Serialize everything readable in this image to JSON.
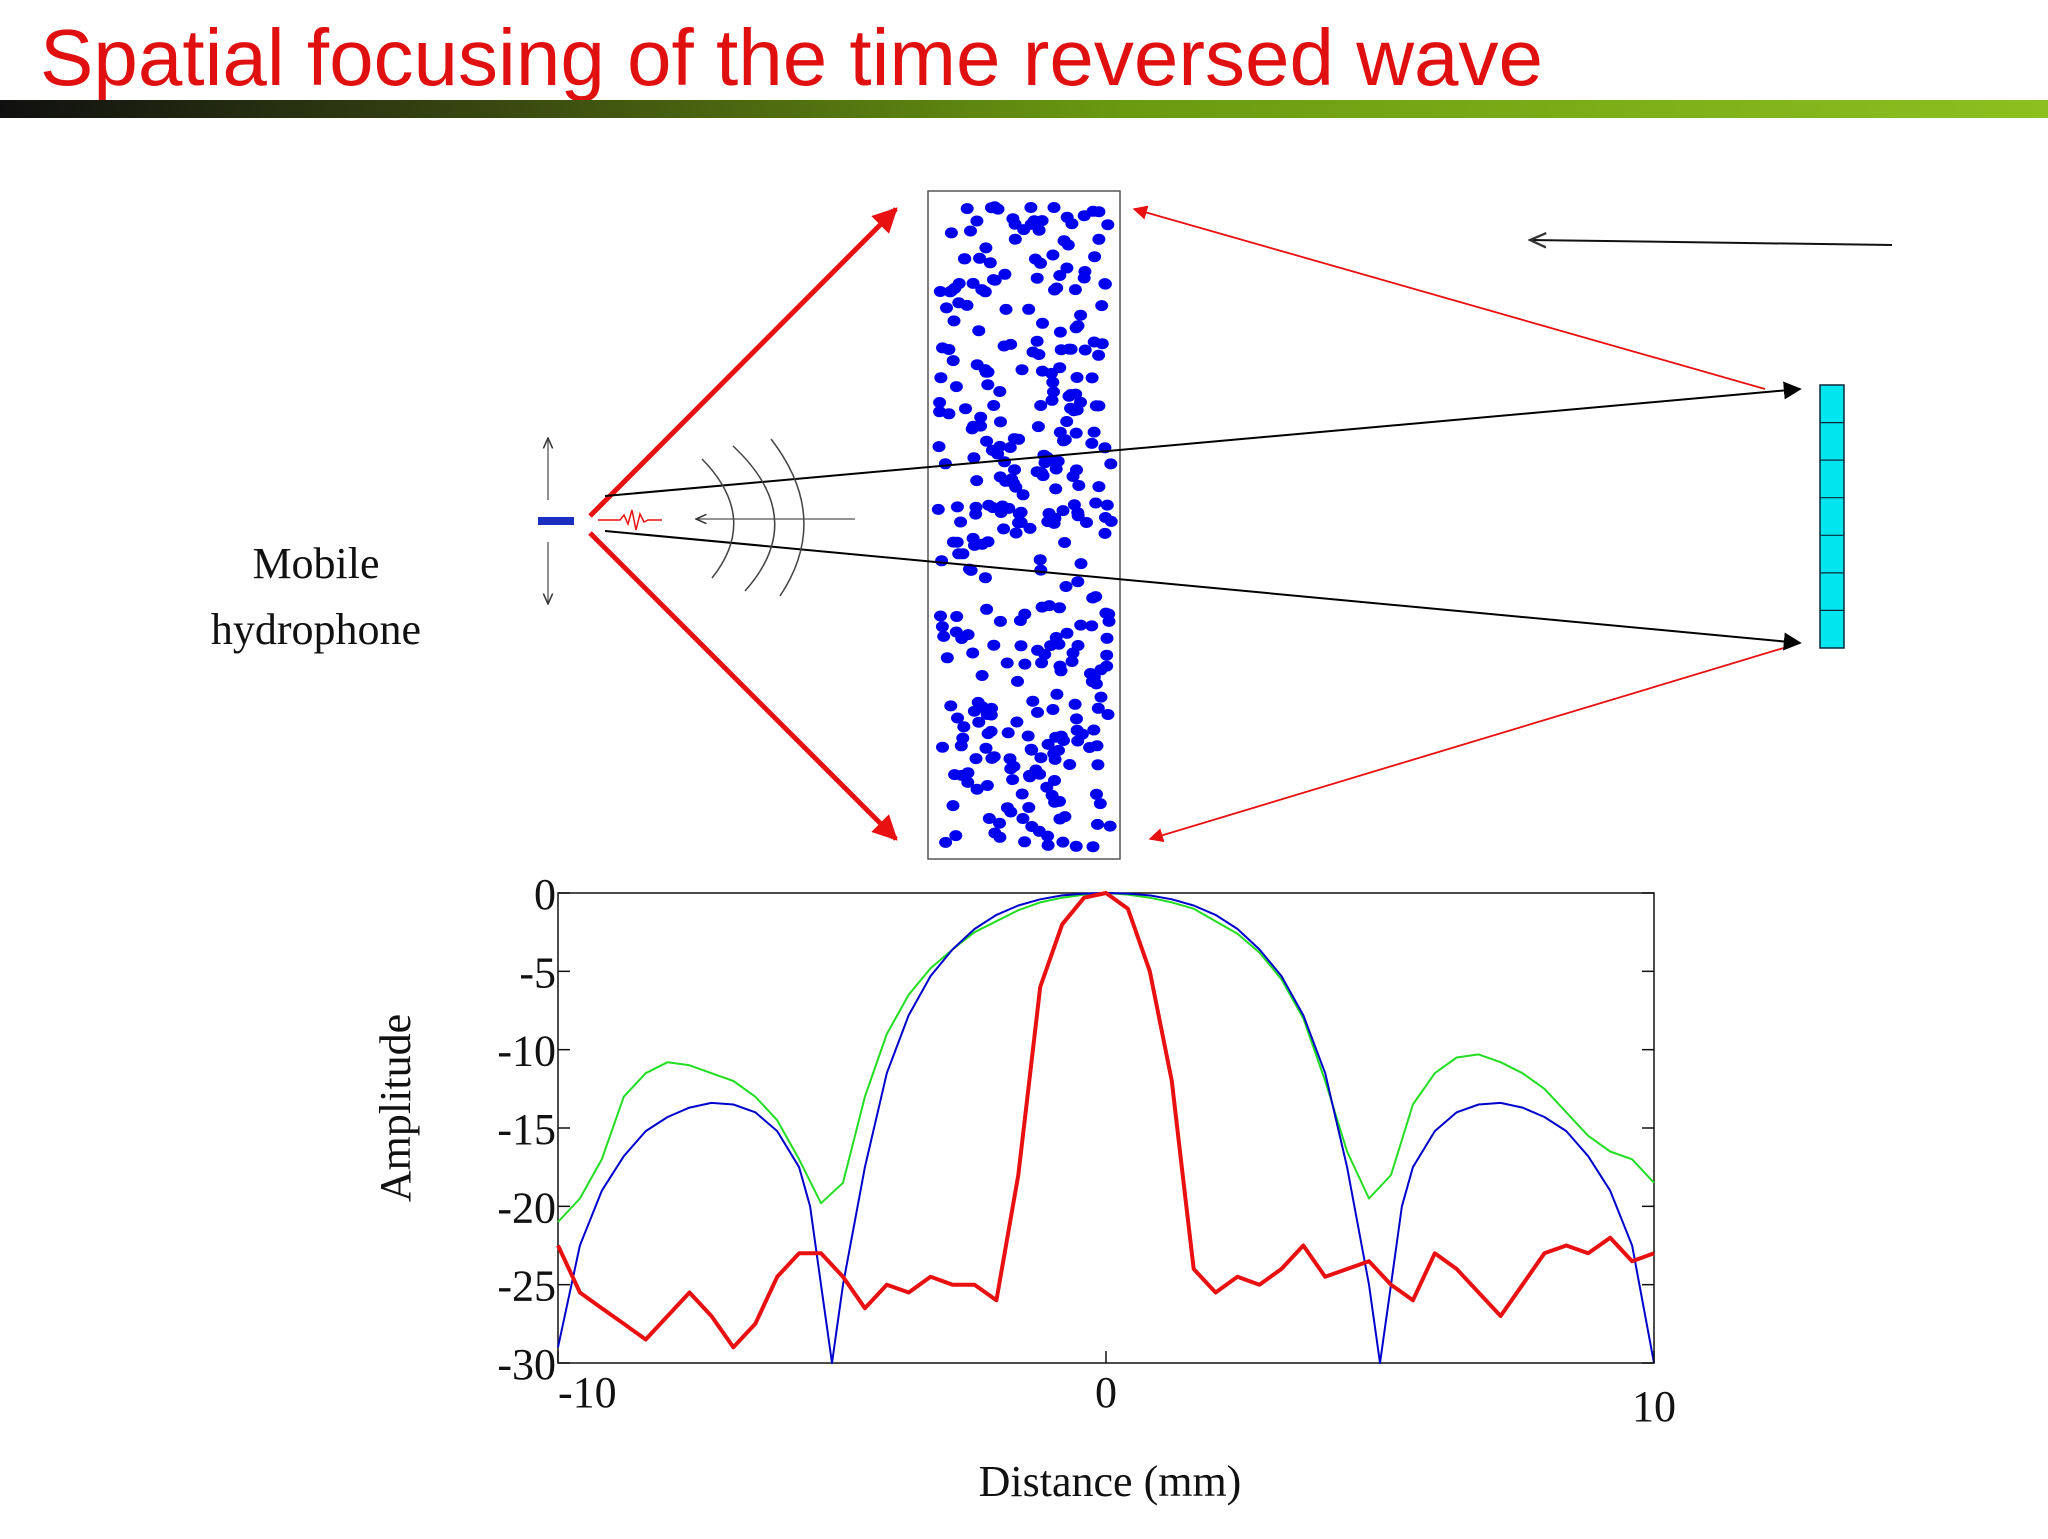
{
  "title": "Spatial focusing of the time reversed wave",
  "colors": {
    "title": "#e01010",
    "scatterers": "#0000ee",
    "array": "#00e5ee",
    "red_arrow": "#e81010",
    "green_curve": "#22dd22",
    "blue_curve": "#0000cc",
    "red_curve": "#e81010"
  },
  "diagram": {
    "hydrophone_label_line1": "Mobile",
    "hydrophone_label_line2": "hydrophone",
    "icons": [
      "hydrophone-marker",
      "scattering-slab",
      "transducer-array",
      "direction-arrow"
    ],
    "array_elements": 7
  },
  "chart_data": {
    "type": "line",
    "xlabel": "Distance (mm)",
    "ylabel": "Amplitude",
    "xlim": [
      -10,
      10
    ],
    "ylim": [
      -30,
      0
    ],
    "xticks": [
      -10,
      0,
      10
    ],
    "yticks": [
      0,
      -5,
      -10,
      -15,
      -20,
      -25,
      -30
    ],
    "x_tick_labels": [
      "-10",
      "0",
      "10"
    ],
    "y_tick_labels": [
      "0",
      "-5",
      "-10",
      "-15",
      "-20",
      "-25",
      "-30"
    ],
    "grid": false,
    "series": [
      {
        "color": "#22dd22",
        "x": [
          -10,
          -9.6,
          -9.2,
          -8.8,
          -8.4,
          -8.0,
          -7.6,
          -7.2,
          -6.8,
          -6.4,
          -6.0,
          -5.6,
          -5.2,
          -4.8,
          -4.4,
          -4.0,
          -3.6,
          -3.2,
          -2.8,
          -2.4,
          -2.0,
          -1.6,
          -1.2,
          -0.8,
          -0.4,
          0,
          0.4,
          0.8,
          1.2,
          1.6,
          2.0,
          2.4,
          2.8,
          3.2,
          3.6,
          4.0,
          4.4,
          4.8,
          5.2,
          5.6,
          6.0,
          6.4,
          6.8,
          7.2,
          7.6,
          8.0,
          8.4,
          8.8,
          9.2,
          9.6,
          10
        ],
        "y": [
          -21.0,
          -19.5,
          -17.0,
          -13.0,
          -11.5,
          -10.8,
          -11.0,
          -11.5,
          -12.0,
          -13.0,
          -14.5,
          -17.0,
          -19.8,
          -18.5,
          -13.0,
          -9.0,
          -6.5,
          -4.8,
          -3.6,
          -2.5,
          -1.8,
          -1.1,
          -0.6,
          -0.3,
          -0.1,
          0,
          -0.1,
          -0.3,
          -0.6,
          -1.0,
          -1.8,
          -2.6,
          -3.8,
          -5.5,
          -8.0,
          -12.0,
          -16.5,
          -19.5,
          -18.0,
          -13.5,
          -11.5,
          -10.5,
          -10.3,
          -10.8,
          -11.5,
          -12.5,
          -14.0,
          -15.5,
          -16.5,
          -17.0,
          -18.5
        ]
      },
      {
        "color": "#0000cc",
        "x": [
          -10,
          -9.6,
          -9.2,
          -8.8,
          -8.4,
          -8.0,
          -7.6,
          -7.2,
          -6.8,
          -6.4,
          -6.0,
          -5.6,
          -5.4,
          -5.2,
          -5.0,
          -4.8,
          -4.4,
          -4.0,
          -3.6,
          -3.2,
          -2.8,
          -2.4,
          -2.0,
          -1.6,
          -1.2,
          -0.8,
          -0.4,
          0,
          0.4,
          0.8,
          1.2,
          1.6,
          2.0,
          2.4,
          2.8,
          3.2,
          3.6,
          4.0,
          4.4,
          4.8,
          5.0,
          5.2,
          5.4,
          5.6,
          6.0,
          6.4,
          6.8,
          7.2,
          7.6,
          8.0,
          8.4,
          8.8,
          9.2,
          9.6,
          10
        ],
        "y": [
          -29.0,
          -22.5,
          -19.0,
          -16.8,
          -15.2,
          -14.3,
          -13.7,
          -13.4,
          -13.5,
          -14.0,
          -15.2,
          -17.5,
          -20.0,
          -25.0,
          -30.0,
          -25.0,
          -17.5,
          -11.5,
          -7.8,
          -5.3,
          -3.6,
          -2.3,
          -1.4,
          -0.8,
          -0.4,
          -0.15,
          -0.04,
          0,
          -0.04,
          -0.15,
          -0.4,
          -0.8,
          -1.4,
          -2.3,
          -3.6,
          -5.3,
          -7.8,
          -11.5,
          -17.5,
          -25.0,
          -30.0,
          -25.0,
          -20.0,
          -17.5,
          -15.2,
          -14.0,
          -13.5,
          -13.4,
          -13.7,
          -14.3,
          -15.2,
          -16.8,
          -19.0,
          -22.5,
          -30.0
        ]
      },
      {
        "color": "#e81010",
        "x": [
          -10,
          -9.6,
          -9.2,
          -8.8,
          -8.4,
          -8.0,
          -7.6,
          -7.2,
          -6.8,
          -6.4,
          -6.0,
          -5.6,
          -5.2,
          -4.8,
          -4.4,
          -4.0,
          -3.6,
          -3.2,
          -2.8,
          -2.4,
          -2.0,
          -1.6,
          -1.4,
          -1.2,
          -0.8,
          -0.4,
          0,
          0.4,
          0.8,
          1.2,
          1.4,
          1.6,
          2.0,
          2.4,
          2.8,
          3.2,
          3.6,
          4.0,
          4.4,
          4.8,
          5.2,
          5.6,
          6.0,
          6.4,
          6.8,
          7.2,
          7.6,
          8.0,
          8.4,
          8.8,
          9.2,
          9.6,
          10
        ],
        "y": [
          -22.5,
          -25.5,
          -26.5,
          -27.5,
          -28.5,
          -27.0,
          -25.5,
          -27.0,
          -29.0,
          -27.5,
          -24.5,
          -23.0,
          -23.0,
          -24.5,
          -26.5,
          -25.0,
          -25.5,
          -24.5,
          -25.0,
          -25.0,
          -26.0,
          -18.0,
          -12.0,
          -6.0,
          -2.0,
          -0.3,
          0,
          -1.0,
          -5.0,
          -12.0,
          -18.0,
          -24.0,
          -25.5,
          -24.5,
          -25.0,
          -24.0,
          -22.5,
          -24.5,
          -24.0,
          -23.5,
          -25.0,
          -26.0,
          -23.0,
          -24.0,
          -25.5,
          -27.0,
          -25.0,
          -23.0,
          -22.5,
          -23.0,
          -22.0,
          -23.5,
          -23.0
        ]
      }
    ]
  }
}
